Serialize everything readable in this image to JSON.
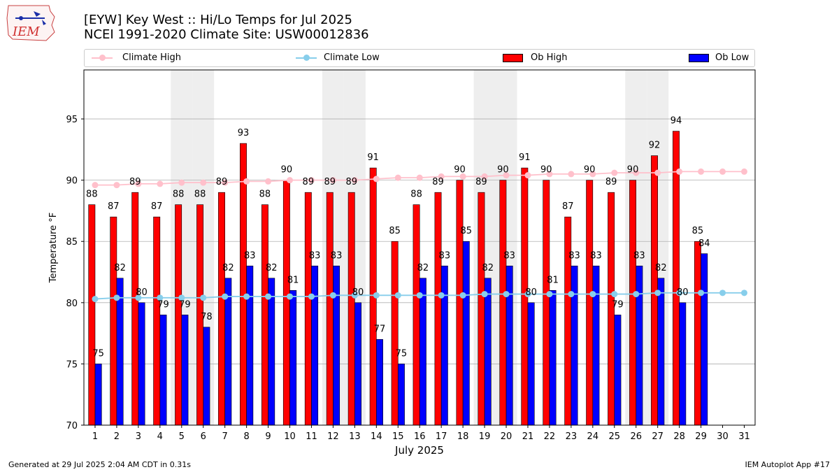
{
  "header": {
    "title_line1": "[EYW] Key West :: Hi/Lo Temps for Jul 2025",
    "title_line2": "NCEI 1991-2020 Climate Site: USW00012836",
    "logo_text": "IEM"
  },
  "footer": {
    "generated": "Generated at 29 Jul 2025 2:04 AM CDT in 0.31s",
    "app": "IEM Autoplot App #17"
  },
  "legend": {
    "climate_high": "Climate High",
    "climate_low": "Climate Low",
    "ob_high": "Ob High",
    "ob_low": "Ob Low"
  },
  "colors": {
    "ob_high": "#ff0000",
    "ob_low": "#0000ff",
    "climate_high": "#ffc0cb",
    "climate_low": "#87ceeb",
    "weekend_band": "#eeeeee",
    "grid": "#b0b0b0"
  },
  "chart_data": {
    "type": "bar",
    "xlabel": "July 2025",
    "ylabel": "Temperature °F",
    "ylim": [
      70,
      99
    ],
    "yticks": [
      70,
      75,
      80,
      85,
      90,
      95
    ],
    "grid": "horizontal",
    "legend_placement": "top",
    "x": [
      1,
      2,
      3,
      4,
      5,
      6,
      7,
      8,
      9,
      10,
      11,
      12,
      13,
      14,
      15,
      16,
      17,
      18,
      19,
      20,
      21,
      22,
      23,
      24,
      25,
      26,
      27,
      28,
      29,
      30,
      31
    ],
    "shaded_days": [
      5,
      6,
      12,
      13,
      19,
      20,
      26,
      27
    ],
    "series": [
      {
        "name": "Ob High",
        "kind": "bar",
        "values": [
          88,
          87,
          89,
          87,
          88,
          88,
          89,
          93,
          88,
          90,
          89,
          89,
          89,
          91,
          85,
          88,
          89,
          90,
          89,
          90,
          91,
          90,
          87,
          90,
          89,
          90,
          92,
          94,
          85,
          null,
          null
        ]
      },
      {
        "name": "Ob Low",
        "kind": "bar",
        "values": [
          75,
          82,
          80,
          79,
          79,
          78,
          82,
          83,
          82,
          81,
          83,
          83,
          80,
          77,
          75,
          82,
          83,
          85,
          82,
          83,
          80,
          81,
          83,
          83,
          79,
          83,
          82,
          80,
          84,
          null,
          null
        ]
      },
      {
        "name": "Climate High",
        "kind": "line",
        "values": [
          89.6,
          89.6,
          89.7,
          89.7,
          89.8,
          89.8,
          89.8,
          89.9,
          89.9,
          90.0,
          90.0,
          90.0,
          90.0,
          90.1,
          90.2,
          90.2,
          90.3,
          90.3,
          90.3,
          90.4,
          90.4,
          90.5,
          90.5,
          90.5,
          90.6,
          90.6,
          90.6,
          90.7,
          90.7,
          90.7,
          90.7
        ]
      },
      {
        "name": "Climate Low",
        "kind": "line",
        "values": [
          80.3,
          80.4,
          80.4,
          80.4,
          80.4,
          80.4,
          80.5,
          80.5,
          80.5,
          80.5,
          80.5,
          80.6,
          80.6,
          80.6,
          80.6,
          80.6,
          80.6,
          80.6,
          80.7,
          80.7,
          80.7,
          80.7,
          80.7,
          80.7,
          80.7,
          80.7,
          80.8,
          80.8,
          80.8,
          80.8,
          80.8
        ]
      }
    ]
  }
}
